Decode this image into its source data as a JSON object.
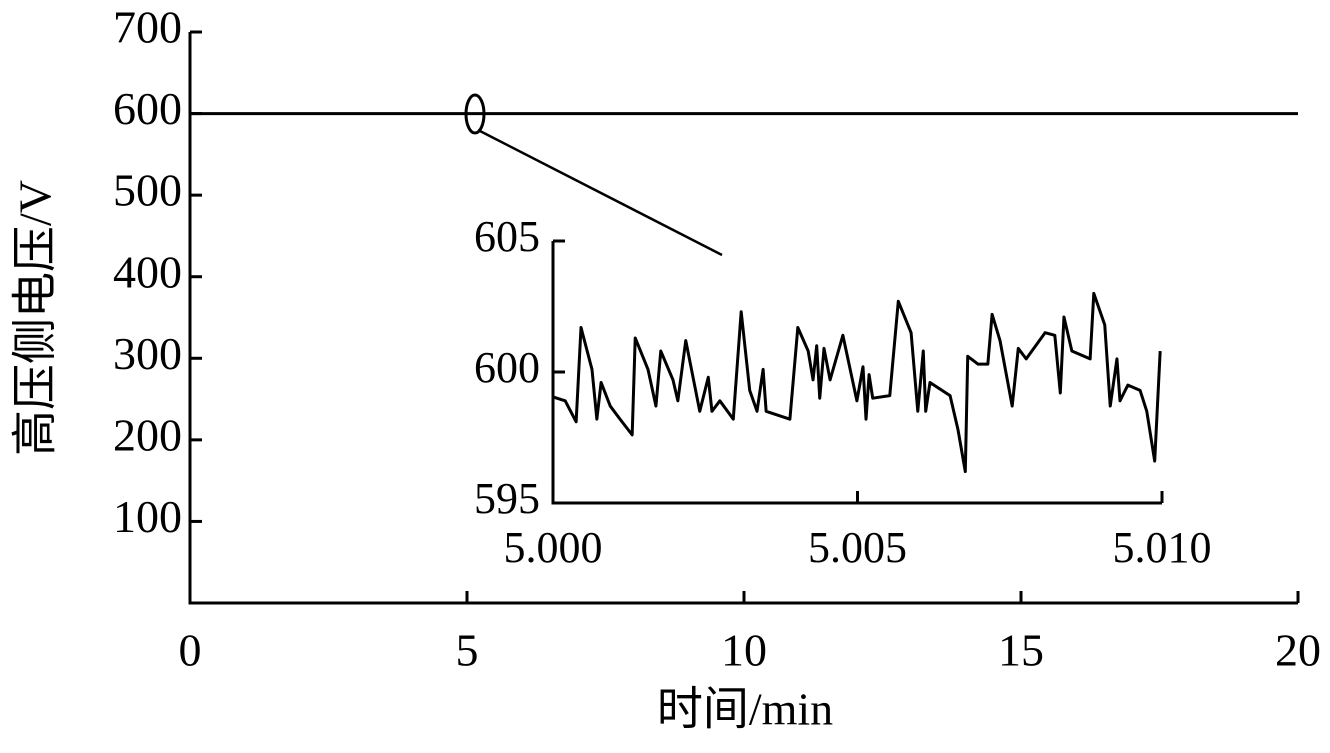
{
  "chart_data": [
    {
      "type": "line",
      "xlabel": "时间/min",
      "ylabel": "高压侧电压/V",
      "xlim": [
        0,
        20
      ],
      "ylim": [
        0,
        700
      ],
      "xticks": [
        0,
        5,
        10,
        15,
        20
      ],
      "yticks": [
        100,
        200,
        300,
        400,
        500,
        600,
        700
      ],
      "series": [
        {
          "color": "#000000",
          "x": [
            0,
            20
          ],
          "values": [
            600,
            600
          ]
        }
      ]
    },
    {
      "type": "line",
      "xlim": [
        5.0,
        5.01
      ],
      "ylim": [
        595,
        605
      ],
      "xticks": [
        {
          "value": 5.0,
          "label": "5.000"
        },
        {
          "value": 5.005,
          "label": "5.005"
        },
        {
          "value": 5.01,
          "label": "5.010"
        }
      ],
      "yticks": [
        595,
        600,
        605
      ],
      "series": [
        {
          "color": "#000000",
          "x": [
            5.0,
            5.0002,
            5.00038,
            5.00046,
            5.00064,
            5.00072,
            5.00079,
            5.00094,
            5.0011,
            5.0013,
            5.00135,
            5.00156,
            5.00169,
            5.00177,
            5.00197,
            5.00205,
            5.00218,
            5.00241,
            5.00255,
            5.00261,
            5.00274,
            5.00296,
            5.00309,
            5.00323,
            5.00335,
            5.00345,
            5.0035,
            5.00389,
            5.00402,
            5.00419,
            5.00427,
            5.00433,
            5.00438,
            5.00445,
            5.00455,
            5.00476,
            5.00499,
            5.00509,
            5.00514,
            5.00519,
            5.00525,
            5.00553,
            5.00567,
            5.00588,
            5.00599,
            5.00608,
            5.00612,
            5.00619,
            5.00652,
            5.00665,
            5.00677,
            5.00681,
            5.00698,
            5.00714,
            5.00721,
            5.00734,
            5.00754,
            5.00764,
            5.00777,
            5.00808,
            5.00824,
            5.00833,
            5.00839,
            5.00852,
            5.00882,
            5.00888,
            5.00906,
            5.00915,
            5.00926,
            5.00931,
            5.00944,
            5.00964,
            5.00975,
            5.00988,
            5.00997
          ],
          "values": [
            599.05,
            598.9,
            598.1,
            601.7,
            600.1,
            598.2,
            599.6,
            598.7,
            598.2,
            597.6,
            601.3,
            600.1,
            598.7,
            600.8,
            599.7,
            598.9,
            601.2,
            598.5,
            599.8,
            598.5,
            598.9,
            598.2,
            602.3,
            599.3,
            598.5,
            600.1,
            598.5,
            598.2,
            601.7,
            600.8,
            599.7,
            601.0,
            599.0,
            600.9,
            599.7,
            601.4,
            598.9,
            600.2,
            598.2,
            599.9,
            599.0,
            599.1,
            602.7,
            601.5,
            598.5,
            600.8,
            598.5,
            599.6,
            599.1,
            597.8,
            596.2,
            600.6,
            600.3,
            600.3,
            602.2,
            601.2,
            598.7,
            600.9,
            600.5,
            601.5,
            601.4,
            599.2,
            602.1,
            600.8,
            600.5,
            603.0,
            601.8,
            598.7,
            600.5,
            598.9,
            599.5,
            599.3,
            598.5,
            596.6,
            600.8
          ]
        }
      ]
    }
  ]
}
